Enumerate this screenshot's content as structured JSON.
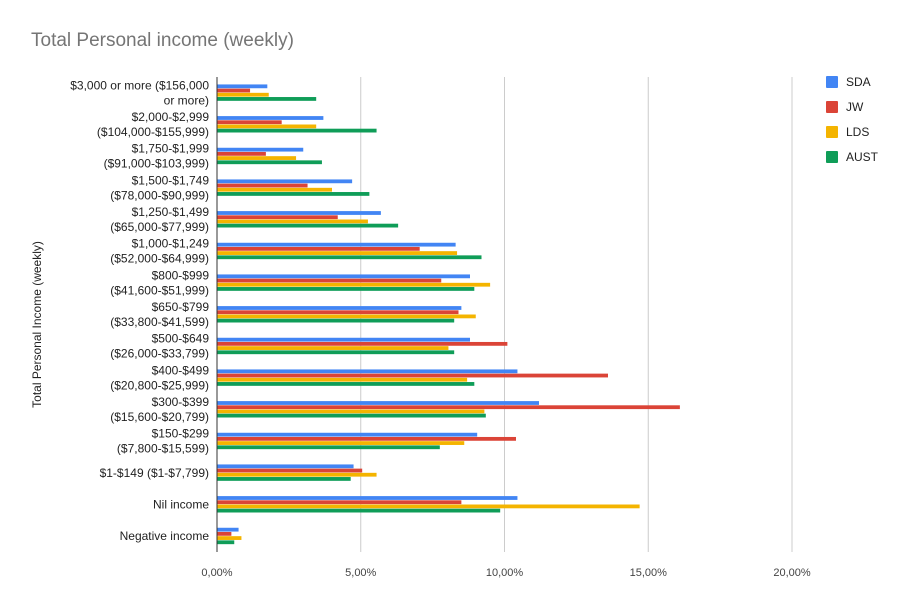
{
  "chart_data": {
    "type": "bar",
    "orientation": "horizontal",
    "title": "Total Personal income (weekly)",
    "xlabel": "",
    "ylabel": "Total Personal Income (weekly)",
    "xlim": [
      0,
      0.2
    ],
    "x_ticks": [
      "0,00%",
      "5,00%",
      "10,00%",
      "15,00%",
      "20,00%"
    ],
    "grid": true,
    "legend_position": "right",
    "categories": [
      [
        "$3,000 or more ($156,000",
        "or more)"
      ],
      [
        "$2,000-$2,999",
        "($104,000-$155,999)"
      ],
      [
        "$1,750-$1,999",
        "($91,000-$103,999)"
      ],
      [
        "$1,500-$1,749",
        "($78,000-$90,999)"
      ],
      [
        "$1,250-$1,499",
        "($65,000-$77,999)"
      ],
      [
        "$1,000-$1,249",
        "($52,000-$64,999)"
      ],
      [
        "$800-$999",
        "($41,600-$51,999)"
      ],
      [
        "$650-$799",
        "($33,800-$41,599)"
      ],
      [
        "$500-$649",
        "($26,000-$33,799)"
      ],
      [
        "$400-$499",
        "($20,800-$25,999)"
      ],
      [
        "$300-$399",
        "($15,600-$20,799)"
      ],
      [
        "$150-$299",
        "($7,800-$15,599)"
      ],
      [
        "$1-$149 ($1-$7,799)"
      ],
      [
        "Nil income"
      ],
      [
        "Negative income"
      ]
    ],
    "series": [
      {
        "name": "SDA",
        "color": "#4285f4",
        "values": [
          0.0175,
          0.037,
          0.03,
          0.047,
          0.057,
          0.083,
          0.088,
          0.085,
          0.088,
          0.1045,
          0.112,
          0.0905,
          0.0475,
          0.1045,
          0.0075
        ]
      },
      {
        "name": "JW",
        "color": "#db4437",
        "values": [
          0.0115,
          0.0225,
          0.017,
          0.0315,
          0.042,
          0.0705,
          0.078,
          0.084,
          0.101,
          0.136,
          0.161,
          0.104,
          0.0505,
          0.085,
          0.005
        ]
      },
      {
        "name": "LDS",
        "color": "#f4b400",
        "values": [
          0.018,
          0.0345,
          0.0275,
          0.04,
          0.0525,
          0.0835,
          0.095,
          0.09,
          0.0805,
          0.087,
          0.093,
          0.086,
          0.0555,
          0.147,
          0.0085
        ]
      },
      {
        "name": "AUST",
        "color": "#0f9d58",
        "values": [
          0.0345,
          0.0555,
          0.0365,
          0.053,
          0.063,
          0.092,
          0.0895,
          0.0825,
          0.0825,
          0.0895,
          0.0935,
          0.0775,
          0.0465,
          0.0985,
          0.006
        ]
      }
    ]
  }
}
